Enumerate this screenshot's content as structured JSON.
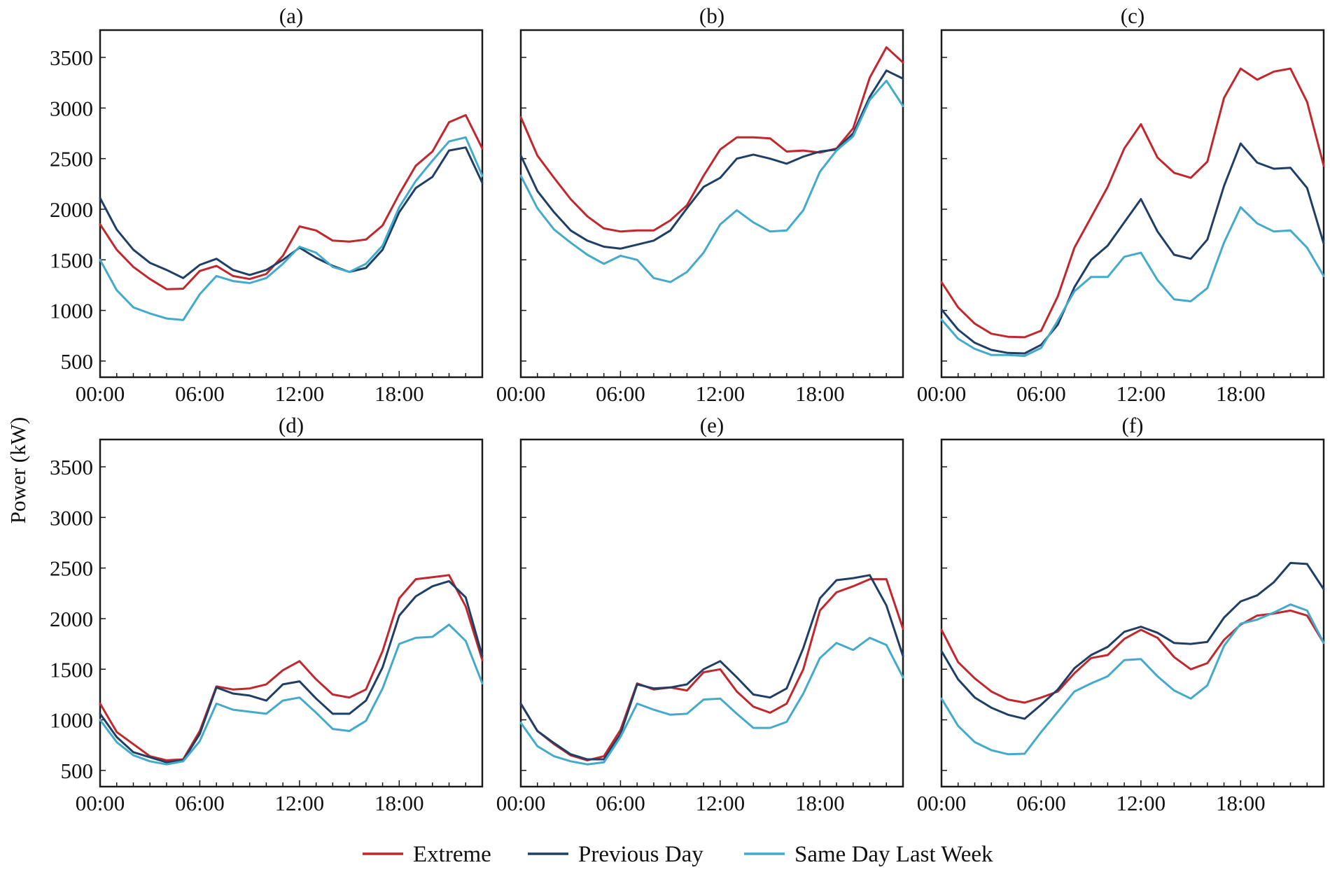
{
  "chart_data": {
    "type": "line",
    "ylabel": "Power (kW)",
    "ylim": [
      340,
      3770
    ],
    "xlim": [
      0,
      23
    ],
    "yticks": [
      500,
      1000,
      1500,
      2000,
      2500,
      3000,
      3500
    ],
    "ytick_labels": [
      "500",
      "1000",
      "1500",
      "2000",
      "2500",
      "3000",
      "3500"
    ],
    "xticks": [
      0,
      6,
      12,
      18
    ],
    "xtick_labels": [
      "00:00",
      "06:00",
      "12:00",
      "18:00"
    ],
    "x": [
      0,
      1,
      2,
      3,
      4,
      5,
      6,
      7,
      8,
      9,
      10,
      11,
      12,
      13,
      14,
      15,
      16,
      17,
      18,
      19,
      20,
      21,
      22,
      23
    ],
    "legend": {
      "placement": "bottom-center",
      "entries": [
        {
          "name": "Extreme",
          "color": "#c1272d"
        },
        {
          "name": "Previous Day",
          "color": "#203f66"
        },
        {
          "name": "Same Day Last Week",
          "color": "#44aacc"
        }
      ]
    },
    "panels": [
      {
        "title": "(a)",
        "series": [
          {
            "name": "Extreme",
            "values": [
              1850,
              1600,
              1430,
              1310,
              1210,
              1215,
              1390,
              1440,
              1340,
              1310,
              1360,
              1540,
              1830,
              1790,
              1690,
              1680,
              1700,
              1840,
              2150,
              2430,
              2570,
              2860,
              2930,
              2600
            ]
          },
          {
            "name": "Previous Day",
            "values": [
              2110,
              1800,
              1600,
              1470,
              1400,
              1320,
              1450,
              1510,
              1400,
              1350,
              1400,
              1500,
              1620,
              1520,
              1440,
              1380,
              1420,
              1600,
              1970,
              2210,
              2320,
              2580,
              2610,
              2260
            ]
          },
          {
            "name": "Same Day Last Week",
            "values": [
              1500,
              1200,
              1030,
              970,
              920,
              905,
              1160,
              1340,
              1290,
              1270,
              1320,
              1460,
              1630,
              1570,
              1430,
              1380,
              1460,
              1640,
              2020,
              2280,
              2480,
              2670,
              2710,
              2330
            ]
          }
        ]
      },
      {
        "title": "(b)",
        "series": [
          {
            "name": "Extreme",
            "values": [
              2910,
              2530,
              2310,
              2100,
              1930,
              1810,
              1780,
              1790,
              1790,
              1890,
              2040,
              2330,
              2590,
              2710,
              2710,
              2700,
              2570,
              2580,
              2560,
              2600,
              2800,
              3300,
              3600,
              3450
            ]
          },
          {
            "name": "Previous Day",
            "values": [
              2530,
              2180,
              1970,
              1790,
              1690,
              1630,
              1610,
              1650,
              1690,
              1790,
              2010,
              2220,
              2310,
              2500,
              2540,
              2500,
              2450,
              2520,
              2570,
              2590,
              2750,
              3110,
              3370,
              3290
            ]
          },
          {
            "name": "Same Day Last Week",
            "values": [
              2330,
              2010,
              1800,
              1670,
              1550,
              1460,
              1540,
              1500,
              1320,
              1280,
              1380,
              1570,
              1850,
              1990,
              1870,
              1780,
              1790,
              1990,
              2370,
              2580,
              2720,
              3080,
              3270,
              3020
            ]
          }
        ]
      },
      {
        "title": "(c)",
        "series": [
          {
            "name": "Extreme",
            "values": [
              1280,
              1030,
              870,
              770,
              740,
              735,
              800,
              1140,
              1620,
              1920,
              2220,
              2600,
              2840,
              2510,
              2360,
              2310,
              2470,
              3100,
              3390,
              3280,
              3360,
              3390,
              3060,
              2430
            ]
          },
          {
            "name": "Previous Day",
            "values": [
              1010,
              810,
              680,
              610,
              580,
              575,
              660,
              860,
              1230,
              1500,
              1640,
              1870,
              2100,
              1780,
              1550,
              1510,
              1700,
              2230,
              2650,
              2460,
              2400,
              2410,
              2210,
              1660
            ]
          },
          {
            "name": "Same Day Last Week",
            "values": [
              910,
              720,
              620,
              560,
              560,
              550,
              630,
              900,
              1190,
              1330,
              1330,
              1530,
              1570,
              1300,
              1110,
              1090,
              1220,
              1670,
              2020,
              1860,
              1780,
              1790,
              1620,
              1340
            ]
          }
        ]
      },
      {
        "title": "(d)",
        "series": [
          {
            "name": "Extreme",
            "values": [
              1160,
              880,
              760,
              640,
              600,
              610,
              890,
              1330,
              1300,
              1310,
              1350,
              1490,
              1580,
              1400,
              1250,
              1220,
              1300,
              1680,
              2200,
              2390,
              2410,
              2430,
              2120,
              1590
            ]
          },
          {
            "name": "Previous Day",
            "values": [
              1060,
              830,
              680,
              630,
              580,
              600,
              860,
              1320,
              1260,
              1240,
              1190,
              1350,
              1380,
              1210,
              1060,
              1060,
              1190,
              1520,
              2030,
              2220,
              2320,
              2370,
              2210,
              1630
            ]
          },
          {
            "name": "Same Day Last Week",
            "values": [
              1000,
              780,
              650,
              590,
              560,
              590,
              790,
              1160,
              1100,
              1080,
              1060,
              1190,
              1220,
              1070,
              910,
              890,
              990,
              1310,
              1750,
              1810,
              1820,
              1940,
              1780,
              1360
            ]
          }
        ]
      },
      {
        "title": "(e)",
        "series": [
          {
            "name": "Extreme",
            "values": [
              1160,
              890,
              760,
              650,
              600,
              640,
              900,
              1360,
              1300,
              1320,
              1290,
              1470,
              1500,
              1280,
              1130,
              1070,
              1160,
              1500,
              2080,
              2260,
              2320,
              2390,
              2390,
              1900
            ]
          },
          {
            "name": "Previous Day",
            "values": [
              1160,
              890,
              770,
              660,
              610,
              610,
              860,
              1350,
              1310,
              1320,
              1350,
              1500,
              1580,
              1420,
              1250,
              1220,
              1310,
              1710,
              2200,
              2380,
              2400,
              2430,
              2130,
              1630
            ]
          },
          {
            "name": "Same Day Last Week",
            "values": [
              970,
              740,
              640,
              590,
              560,
              580,
              830,
              1160,
              1100,
              1050,
              1060,
              1200,
              1210,
              1060,
              920,
              920,
              980,
              1260,
              1610,
              1760,
              1690,
              1810,
              1740,
              1420
            ]
          }
        ]
      },
      {
        "title": "(f)",
        "series": [
          {
            "name": "Extreme",
            "values": [
              1890,
              1570,
              1410,
              1280,
              1200,
              1170,
              1220,
              1280,
              1460,
              1610,
              1640,
              1800,
              1890,
              1810,
              1620,
              1500,
              1560,
              1790,
              1940,
              2030,
              2050,
              2080,
              2030,
              1760
            ]
          },
          {
            "name": "Previous Day",
            "values": [
              1680,
              1400,
              1220,
              1120,
              1050,
              1010,
              1150,
              1300,
              1510,
              1640,
              1720,
              1870,
              1920,
              1860,
              1760,
              1750,
              1770,
              2010,
              2170,
              2230,
              2360,
              2550,
              2540,
              2290
            ]
          },
          {
            "name": "Same Day Last Week",
            "values": [
              1210,
              940,
              780,
              700,
              660,
              665,
              880,
              1080,
              1280,
              1360,
              1430,
              1590,
              1600,
              1430,
              1290,
              1210,
              1340,
              1730,
              1950,
              1990,
              2060,
              2140,
              2080,
              1760
            ]
          }
        ]
      }
    ]
  }
}
